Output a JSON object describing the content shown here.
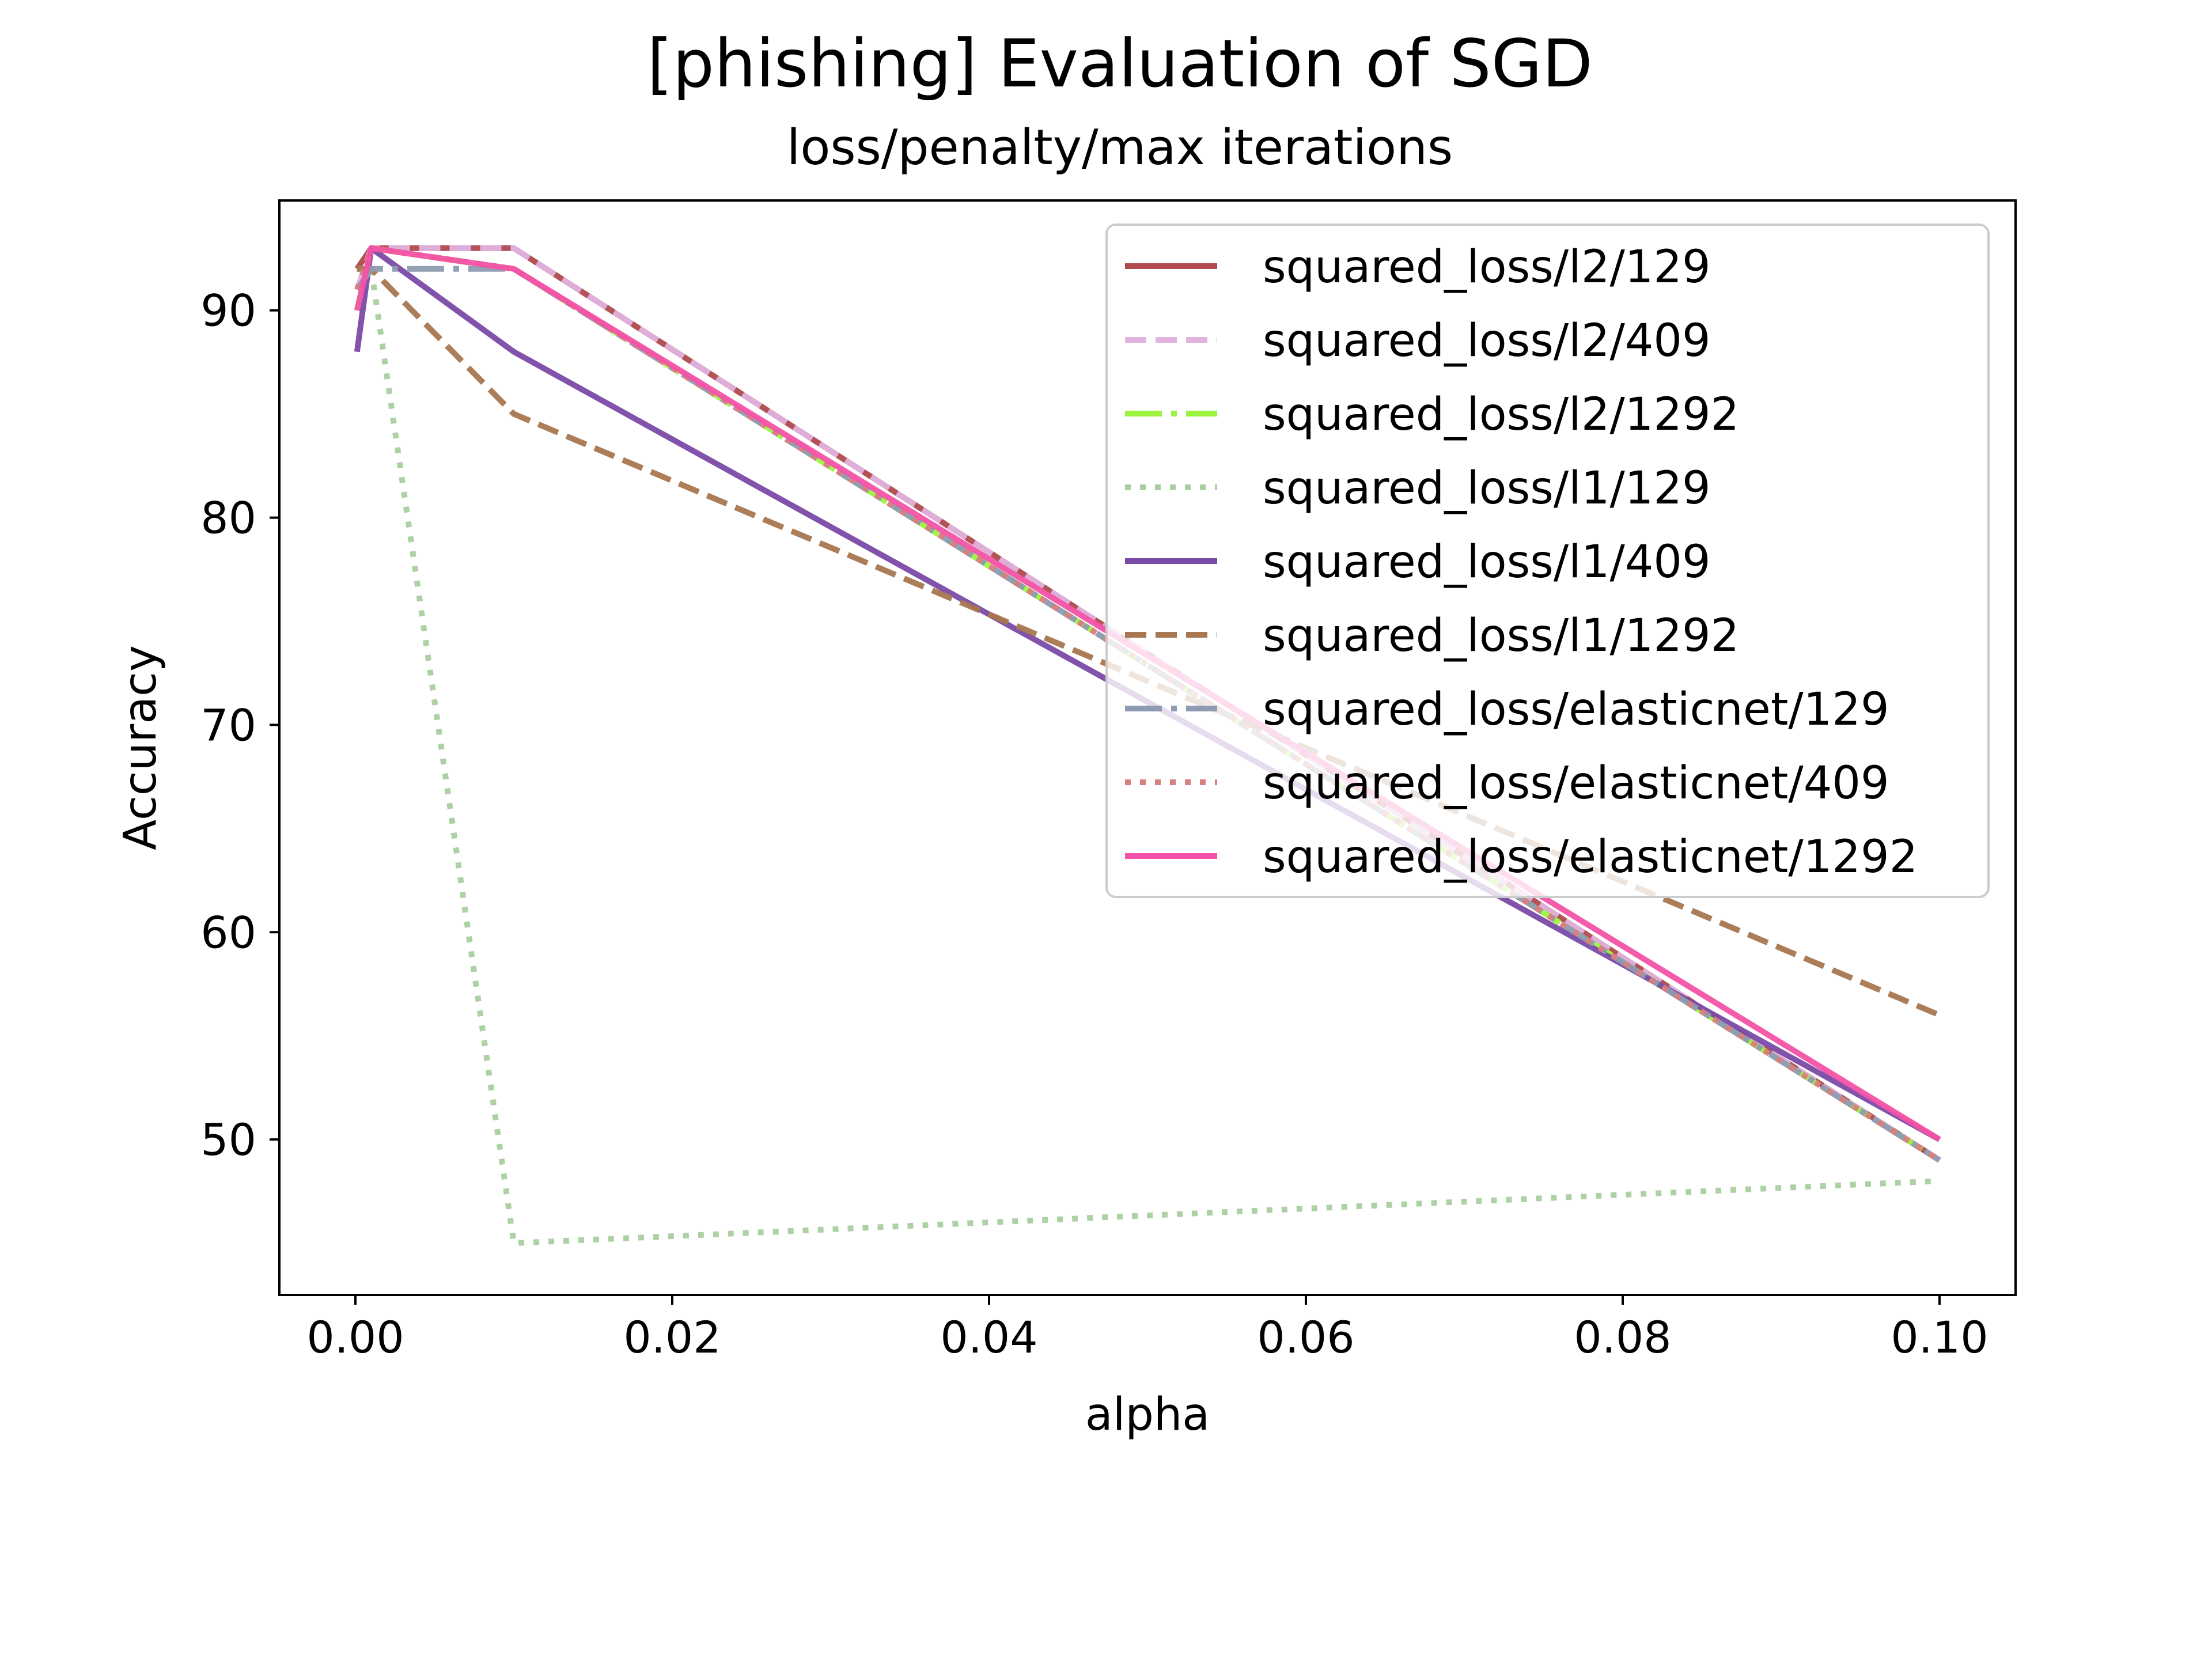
{
  "chart_data": {
    "type": "line",
    "title": "[phishing] Evaluation of SGD",
    "subtitle": "loss/penalty/max iterations",
    "xlabel": "alpha",
    "ylabel": "Accuracy",
    "xlim": [
      -0.0048,
      0.1048
    ],
    "ylim": [
      42.5,
      95.3
    ],
    "xticks": [
      0.0,
      0.02,
      0.04,
      0.06,
      0.08,
      0.1
    ],
    "xtick_labels": [
      "0.00",
      "0.02",
      "0.04",
      "0.06",
      "0.08",
      "0.10"
    ],
    "yticks": [
      50,
      60,
      70,
      80,
      90
    ],
    "ytick_labels": [
      "50",
      "60",
      "70",
      "80",
      "90"
    ],
    "grid": false,
    "legend_position": "upper right",
    "x": [
      0.0001,
      0.001,
      0.01,
      0.1
    ],
    "series": [
      {
        "name": "squared_loss/l2/129",
        "values": [
          92,
          93,
          93,
          49
        ],
        "color": "#b04a4e",
        "dash": "solid"
      },
      {
        "name": "squared_loss/l2/409",
        "values": [
          91,
          93,
          93,
          49
        ],
        "color": "#e1b3df",
        "dash": "dashed"
      },
      {
        "name": "squared_loss/l2/1292",
        "values": [
          90,
          93,
          92,
          49
        ],
        "color": "#9cf33f",
        "dash": "dashdot"
      },
      {
        "name": "squared_loss/l1/129",
        "values": [
          92,
          92,
          45,
          48
        ],
        "color": "#a9cfa0",
        "dash": "dotted"
      },
      {
        "name": "squared_loss/l1/409",
        "values": [
          88,
          93,
          88,
          50
        ],
        "color": "#7a4aa6",
        "dash": "solid"
      },
      {
        "name": "squared_loss/l1/1292",
        "values": [
          92,
          92,
          85,
          56
        ],
        "color": "#a87650",
        "dash": "dashed"
      },
      {
        "name": "squared_loss/elasticnet/129",
        "values": [
          91,
          92,
          92,
          49
        ],
        "color": "#8e9bb0",
        "dash": "dashdot"
      },
      {
        "name": "squared_loss/elasticnet/409",
        "values": [
          91,
          93,
          92,
          49
        ],
        "color": "#d88080",
        "dash": "dotted"
      },
      {
        "name": "squared_loss/elasticnet/1292",
        "values": [
          90,
          93,
          92,
          50
        ],
        "color": "#f452a6",
        "dash": "solid"
      }
    ]
  }
}
